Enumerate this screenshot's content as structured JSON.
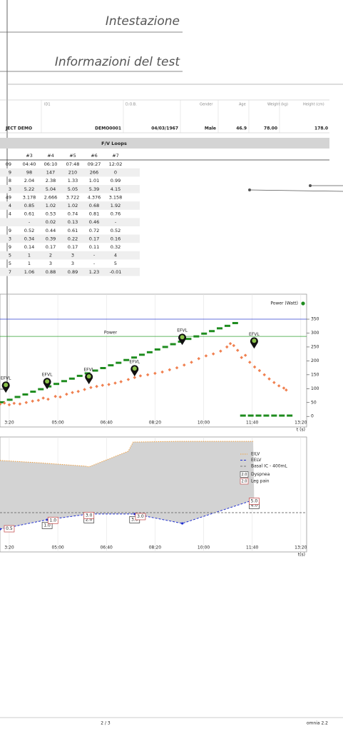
{
  "header": {
    "title": "Intestazione",
    "subtitle": "Informazioni del test"
  },
  "patient": {
    "fields": [
      {
        "value": "JECT DEMO"
      },
      {
        "label": "ID1",
        "value": "DEMO0001"
      },
      {
        "label": "D.O.B.",
        "value": "04/03/1967"
      },
      {
        "label": "Gender",
        "value": "Male"
      },
      {
        "label": "Age",
        "value": "46.9"
      },
      {
        "label": "Weight (kg)",
        "value": "78.00"
      },
      {
        "label": "Height (cm)",
        "value": "178.0"
      }
    ]
  },
  "table": {
    "title": "F/V Loops",
    "columns": [
      "#3",
      "#4",
      "#5",
      "#6",
      "#7"
    ],
    "rows": [
      [
        "09",
        "04:40",
        "06:10",
        "07:48",
        "09:27",
        "12:02"
      ],
      [
        "9",
        "98",
        "147",
        "210",
        "266",
        "0"
      ],
      [
        "8",
        "2.04",
        "2.38",
        "1.33",
        "1.01",
        "0.99"
      ],
      [
        "3",
        "5.22",
        "5.04",
        "5.05",
        "5.39",
        "4.15"
      ],
      [
        "49",
        "3.178",
        "2.666",
        "3.722",
        "4.376",
        "3.158"
      ],
      [
        "4",
        "0.85",
        "1.02",
        "1.02",
        "0.68",
        "1.92"
      ],
      [
        "4",
        "0.61",
        "0.53",
        "0.74",
        "0.81",
        "0.76"
      ],
      [
        null,
        "-",
        "0.02",
        "0.13",
        "0.46",
        "-"
      ],
      [
        "9",
        "0.52",
        "0.44",
        "0.61",
        "0.72",
        "0.52"
      ],
      [
        "3",
        "0.34",
        "0.39",
        "0.22",
        "0.17",
        "0.16"
      ],
      [
        "9",
        "0.14",
        "0.17",
        "0.17",
        "0.11",
        "0.32"
      ],
      [
        "5",
        "1",
        "2",
        "3",
        "-",
        "4"
      ],
      [
        "5",
        "1",
        "3",
        "3",
        "-",
        "5"
      ],
      [
        "7",
        "1.06",
        "0.88",
        "0.89",
        "1.23",
        "-0.01"
      ]
    ]
  },
  "chart_data": [
    {
      "type": "scatter",
      "xlabel": "t (s)",
      "xlim": [
        181,
        812
      ],
      "ylim": [
        -38,
        440
      ],
      "xticks": [
        {
          "value": 200,
          "label": "3:20"
        },
        {
          "value": 300,
          "label": "05:00"
        },
        {
          "value": 400,
          "label": "06:40"
        },
        {
          "value": 500,
          "label": "08:20"
        },
        {
          "value": 600,
          "label": "10:00"
        },
        {
          "value": 700,
          "label": "11:40"
        },
        {
          "value": 800,
          "label": "13:20"
        }
      ],
      "yticks": [
        0,
        50,
        100,
        150,
        200,
        250,
        300,
        350
      ],
      "grid": true,
      "series": [
        {
          "name": "Power (Watt)",
          "color": "#1e8c1e",
          "marker": "dash",
          "x": [
            185,
            201,
            217,
            233,
            249,
            265,
            281,
            297,
            313,
            329,
            345,
            361,
            377,
            393,
            409,
            425,
            441,
            457,
            473,
            489,
            505,
            521,
            537,
            553,
            569,
            585,
            601,
            617,
            633,
            649,
            665,
            681,
            697,
            713,
            729,
            745,
            761,
            777
          ],
          "values": [
            51,
            60,
            70,
            79,
            89,
            98,
            108,
            117,
            127,
            136,
            146,
            155,
            165,
            174,
            184,
            193,
            203,
            212,
            222,
            231,
            241,
            250,
            260,
            269,
            279,
            288,
            298,
            307,
            317,
            326,
            336,
            3,
            3,
            3,
            3,
            3,
            3,
            3
          ]
        },
        {
          "color": "#f08050",
          "marker": "diamond",
          "x": [
            181,
            190,
            200,
            210,
            222,
            235,
            248,
            260,
            270,
            280,
            295,
            305,
            318,
            330,
            342,
            355,
            368,
            380,
            392,
            405,
            418,
            430,
            445,
            458,
            470,
            485,
            500,
            515,
            530,
            545,
            560,
            575,
            590,
            605,
            620,
            635,
            648,
            655,
            662,
            670,
            678,
            686,
            695,
            705,
            715,
            725,
            735,
            745,
            755,
            765,
            770
          ],
          "values": [
            44,
            48,
            42,
            47,
            45,
            50,
            55,
            58,
            66,
            62,
            72,
            70,
            80,
            86,
            90,
            97,
            104,
            108,
            112,
            115,
            120,
            125,
            133,
            140,
            146,
            150,
            155,
            160,
            168,
            175,
            185,
            195,
            208,
            218,
            225,
            235,
            250,
            262,
            255,
            238,
            212,
            220,
            195,
            178,
            165,
            150,
            135,
            122,
            110,
            102,
            95
          ]
        }
      ],
      "reference_lines": [
        {
          "value": 350,
          "color": "#3040d0"
        },
        {
          "value": 288,
          "color": "#30a030",
          "label": "Power"
        }
      ],
      "annotations": [
        {
          "x": 193,
          "y": 85,
          "label": "EFVL"
        },
        {
          "x": 278,
          "y": 98,
          "label": "EFVL"
        },
        {
          "x": 364,
          "y": 116,
          "label": "EFVL"
        },
        {
          "x": 458,
          "y": 144,
          "label": "EFVL"
        },
        {
          "x": 556,
          "y": 257,
          "label": "EFVL"
        },
        {
          "x": 704,
          "y": 244,
          "label": "EFVL"
        }
      ]
    },
    {
      "type": "area",
      "xlabel": "t(s)",
      "xlim": [
        181,
        812
      ],
      "ylim": [
        0,
        5
      ],
      "xticks": [
        {
          "value": 200,
          "label": "3:20"
        },
        {
          "value": 300,
          "label": "05:00"
        },
        {
          "value": 400,
          "label": "06:40"
        },
        {
          "value": 500,
          "label": "08:20"
        },
        {
          "value": 600,
          "label": "10:00"
        },
        {
          "value": 700,
          "label": "11:40"
        },
        {
          "value": 800,
          "label": "13:20"
        }
      ],
      "grid": true,
      "fill": {
        "between": [
          0,
          1
        ],
        "color": "#d3d3d3"
      },
      "legend_sample": "2.0",
      "series": [
        {
          "name": "EILV",
          "color": "#f0a040",
          "dash": "1.5,1.5",
          "x": [
            181,
            260,
            357,
            364,
            445,
            455,
            548,
            702
          ],
          "values": [
            3.98,
            3.88,
            3.73,
            3.7,
            4.38,
            4.78,
            4.81,
            4.81
          ]
        },
        {
          "name": "EELV",
          "color": "#2030d0",
          "dash": "3,2",
          "dots": true,
          "x": [
            181,
            278,
            364,
            458,
            556,
            704
          ],
          "values": [
            0.99,
            1.4,
            1.65,
            1.65,
            1.24,
            2.27
          ]
        },
        {
          "name": "Basal IC - 400mL",
          "color": "#777777",
          "dash": "3,2",
          "x": [
            181,
            812
          ],
          "values": [
            1.71,
            1.71
          ]
        }
      ],
      "scores": [
        {
          "name": "Dyspnea",
          "color": "#333333",
          "x": [
            278,
            364,
            458,
            704
          ],
          "values": [
            1,
            2,
            3,
            4
          ],
          "value_labels": [
            "1.0",
            "2.0",
            "3.0",
            "4.0"
          ]
        },
        {
          "name": "Leg pain",
          "color": "#c04040",
          "x": [
            200,
            290,
            364,
            470,
            704
          ],
          "values": [
            0.5,
            1,
            3,
            3,
            5
          ],
          "value_labels": [
            "0.5",
            "1.0",
            "3.0",
            "3.0",
            "5.0"
          ]
        }
      ]
    }
  ],
  "footer": {
    "page": "2 / 3",
    "version": "omnia 2.2"
  }
}
